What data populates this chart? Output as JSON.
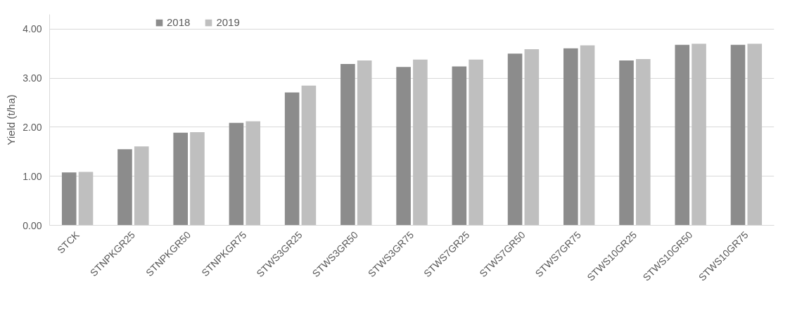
{
  "chart_data": {
    "type": "bar",
    "ylabel": "Yield (t/ha)",
    "categories": [
      "STCK",
      "STNPKGR25",
      "STNPKGR50",
      "STNPKGR75",
      "STWS3GR25",
      "STWS3GR50",
      "STWS3GR75",
      "STWS7GR25",
      "STWS7GR50",
      "STWS7GR75",
      "STWS10GR25",
      "STWS10GR50",
      "STWS10GR75"
    ],
    "series": [
      {
        "name": "2018",
        "color": "#8c8c8c",
        "values": [
          1.08,
          1.55,
          1.89,
          2.09,
          2.71,
          3.29,
          3.23,
          3.24,
          3.5,
          3.61,
          3.36,
          3.68,
          3.68
        ]
      },
      {
        "name": "2019",
        "color": "#bfbfbf",
        "values": [
          1.09,
          1.61,
          1.9,
          2.12,
          2.85,
          3.36,
          3.38,
          3.38,
          3.59,
          3.67,
          3.39,
          3.7,
          3.7
        ]
      }
    ],
    "ylim": [
      0,
      4.3
    ],
    "yticks": [
      {
        "value": 0,
        "label": "0.00"
      },
      {
        "value": 1,
        "label": "1.00"
      },
      {
        "value": 2,
        "label": "2.00"
      },
      {
        "value": 3,
        "label": "3.00"
      },
      {
        "value": 4,
        "label": "4.00"
      }
    ],
    "grid": "y",
    "legend": "top left"
  }
}
